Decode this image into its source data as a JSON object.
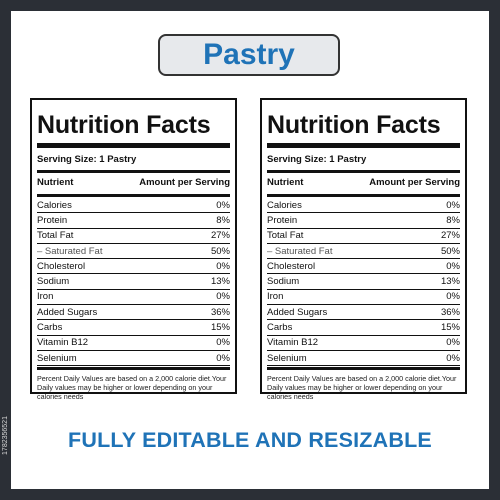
{
  "title": "Pastry",
  "labels": [
    {
      "heading": "Nutrition Facts",
      "serving": "Serving Size: 1 Pastry",
      "col_nutrient": "Nutrient",
      "col_amount": "Amount per Serving",
      "rows": [
        {
          "name": "Calories",
          "value": "0%"
        },
        {
          "name": "Protein",
          "value": "8%"
        },
        {
          "name": "Total Fat",
          "value": "27%"
        },
        {
          "name": "– Saturated Fat",
          "value": "50%"
        },
        {
          "name": "Cholesterol",
          "value": "0%"
        },
        {
          "name": "Sodium",
          "value": "13%"
        },
        {
          "name": "Iron",
          "value": "0%"
        },
        {
          "name": "Added Sugars",
          "value": "36%"
        },
        {
          "name": "Carbs",
          "value": "15%"
        },
        {
          "name": "Vitamin B12",
          "value": "0%"
        },
        {
          "name": "Selenium",
          "value": "0%"
        }
      ],
      "footnote": "Percent Daily Values are based on a 2,000 calorie diet.Your Daily values may be higher or lower depending on your calories needs"
    },
    {
      "heading": "Nutrition Facts",
      "serving": "Serving Size: 1 Pastry",
      "col_nutrient": "Nutrient",
      "col_amount": "Amount per Serving",
      "rows": [
        {
          "name": "Calories",
          "value": "0%"
        },
        {
          "name": "Protein",
          "value": "8%"
        },
        {
          "name": "Total Fat",
          "value": "27%"
        },
        {
          "name": "– Saturated Fat",
          "value": "50%"
        },
        {
          "name": "Cholesterol",
          "value": "0%"
        },
        {
          "name": "Sodium",
          "value": "13%"
        },
        {
          "name": "Iron",
          "value": "0%"
        },
        {
          "name": "Added Sugars",
          "value": "36%"
        },
        {
          "name": "Carbs",
          "value": "15%"
        },
        {
          "name": "Vitamin B12",
          "value": "0%"
        },
        {
          "name": "Selenium",
          "value": "0%"
        }
      ],
      "footnote": "Percent Daily Values are based on a 2,000 calorie diet.Your Daily values may be higher or lower depending on your calories needs"
    }
  ],
  "tagline": "FULLY EDITABLE AND RESIZABLE",
  "stock_id": "1782356521",
  "colors": {
    "accent": "#1f73b7",
    "frame": "#2b2f36",
    "title_bg": "#e7e9ec"
  }
}
